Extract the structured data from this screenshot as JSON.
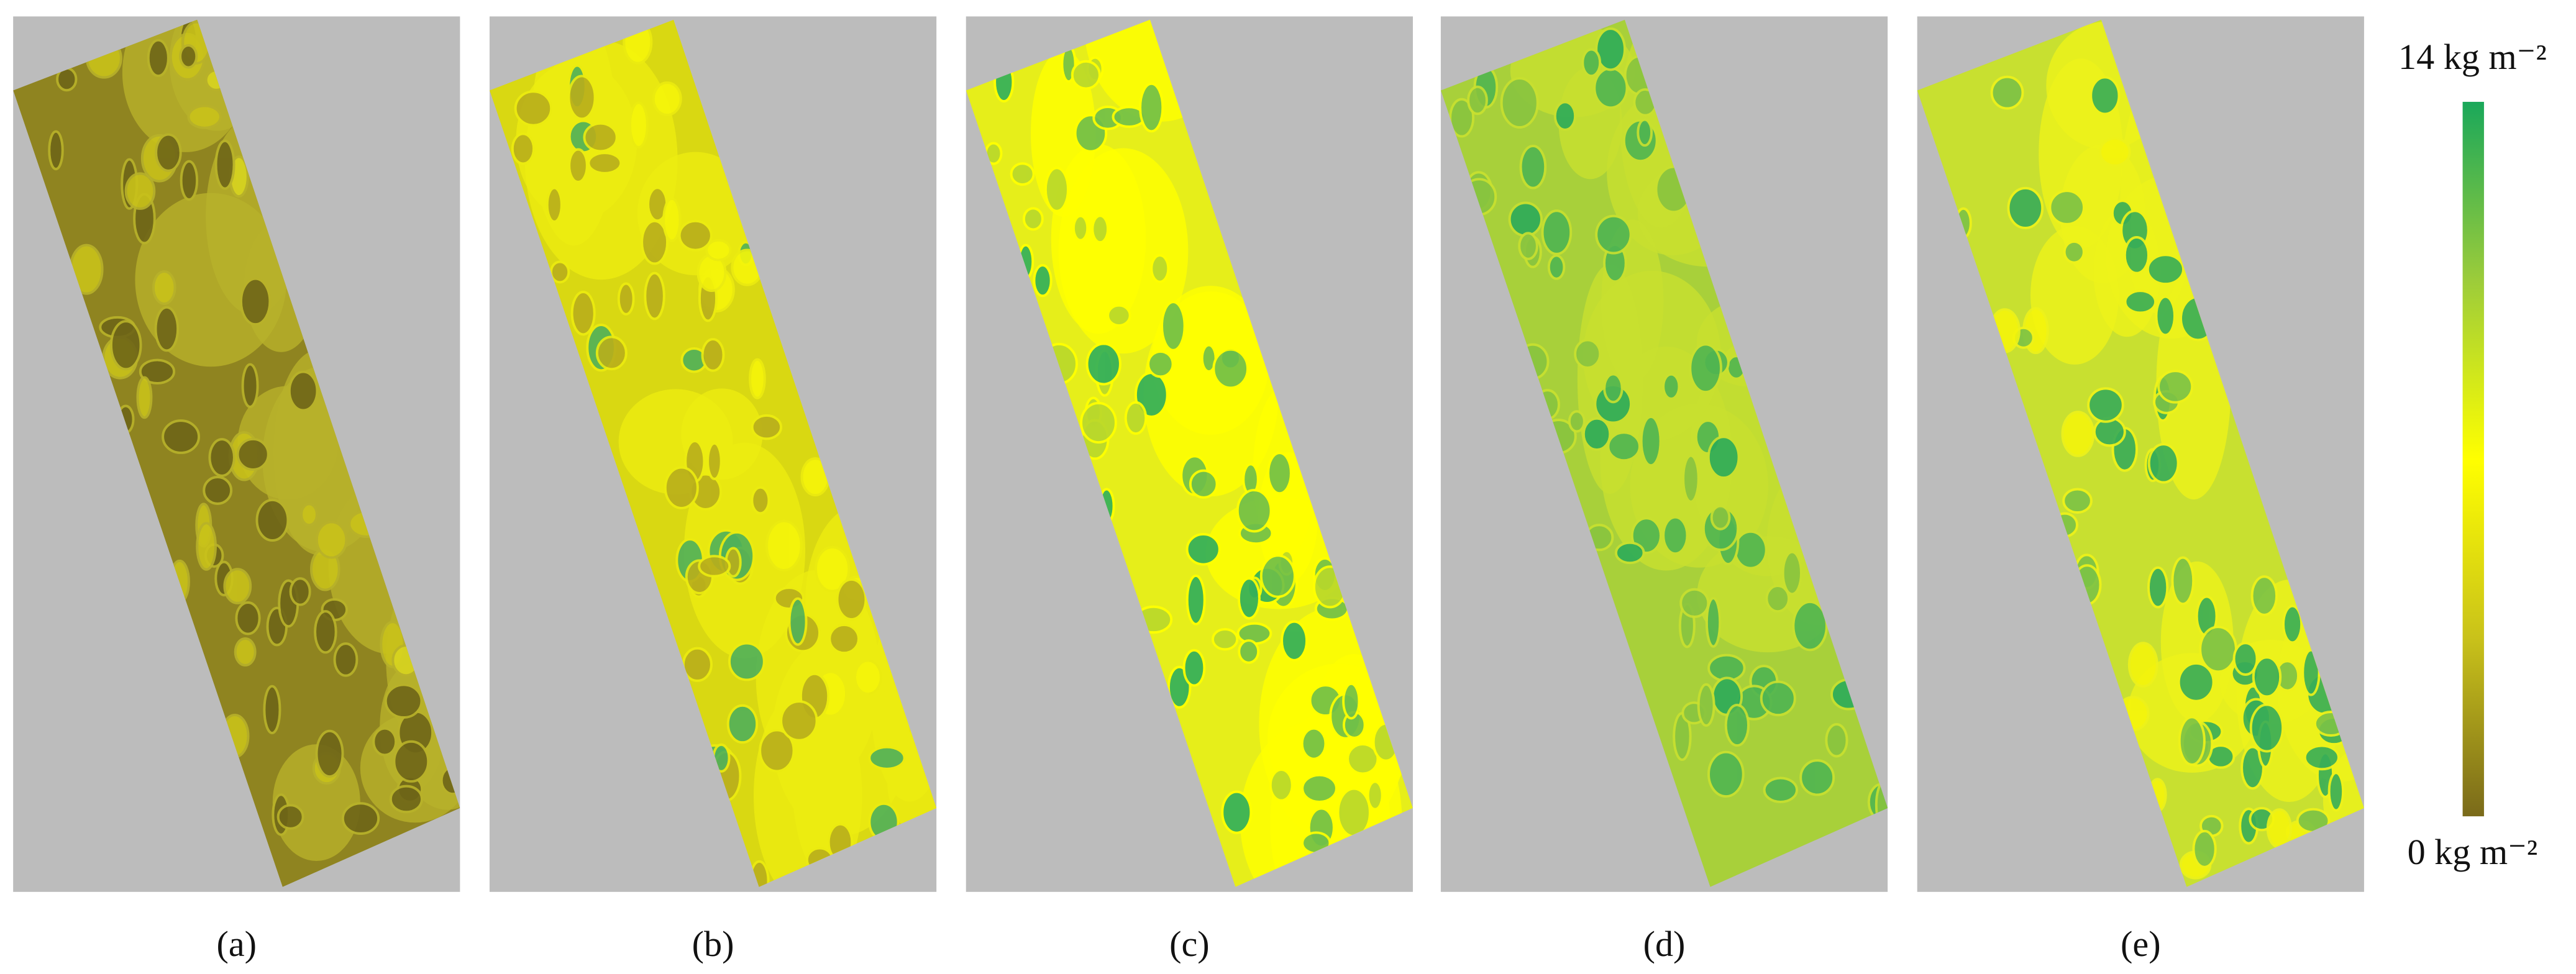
{
  "panels": [
    {
      "label": "(a)"
    },
    {
      "label": "(b)"
    },
    {
      "label": "(c)"
    },
    {
      "label": "(d)"
    },
    {
      "label": "(e)"
    }
  ],
  "colorbar": {
    "max_label": "14 kg m⁻²",
    "min_label": "0 kg m⁻²"
  }
}
